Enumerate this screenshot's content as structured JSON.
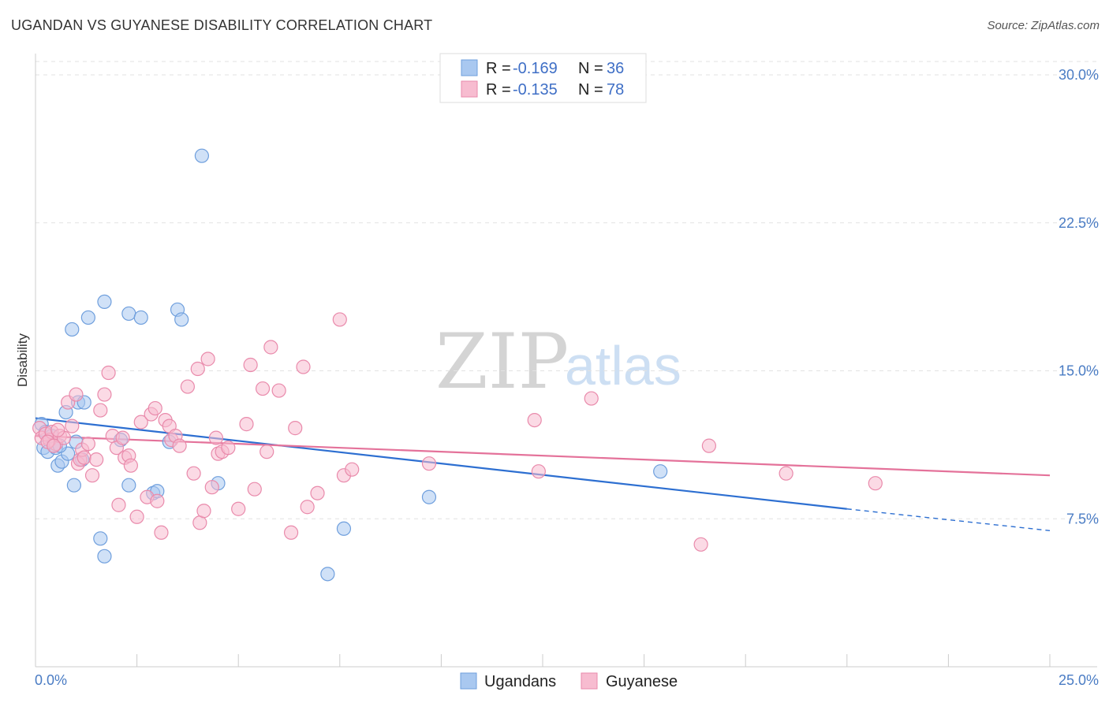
{
  "header": {
    "title": "UGANDAN VS GUYANESE DISABILITY CORRELATION CHART",
    "source": "Source: ZipAtlas.com"
  },
  "legend_top": [
    {
      "r_label": "R = ",
      "r_value": "-0.169",
      "n_label": "N = ",
      "n_value": "36",
      "color": "#a9c8f0",
      "stroke": "#6f9fdd"
    },
    {
      "r_label": "R = ",
      "r_value": "-0.135",
      "n_label": "N = ",
      "n_value": "78",
      "color": "#f7bcd0",
      "stroke": "#e98aab"
    }
  ],
  "watermark": {
    "zip": "ZIP",
    "atlas": "atlas"
  },
  "chart_data": {
    "type": "scatter",
    "title": "UGANDAN VS GUYANESE DISABILITY CORRELATION CHART",
    "ylabel": "Disability",
    "xlabel": "",
    "xlim": [
      0,
      25
    ],
    "ylim": [
      0,
      31
    ],
    "x_tick_labels": [
      "0.0%",
      "25.0%"
    ],
    "y_ticks": [
      7.5,
      15.0,
      22.5,
      30.0
    ],
    "y_tick_labels": [
      "7.5%",
      "15.0%",
      "22.5%",
      "30.0%"
    ],
    "grid": true,
    "legend_position": "bottom-center",
    "series": [
      {
        "name": "Ugandans",
        "color": "#a9c8f0",
        "stroke": "#6f9fdd",
        "line_color": "#2d6fd1",
        "trend": {
          "x0": 0,
          "y0": 12.6,
          "x1": 20,
          "y1": 8.0,
          "dash_to_x": 25,
          "dash_to_y": 6.9
        },
        "points": [
          [
            0.15,
            12.3
          ],
          [
            0.2,
            11.1
          ],
          [
            0.25,
            11.9
          ],
          [
            0.3,
            10.9
          ],
          [
            0.5,
            11.1
          ],
          [
            0.55,
            10.2
          ],
          [
            0.65,
            10.4
          ],
          [
            0.75,
            12.9
          ],
          [
            0.8,
            10.8
          ],
          [
            0.9,
            17.1
          ],
          [
            0.95,
            9.2
          ],
          [
            1.05,
            13.4
          ],
          [
            1.15,
            10.5
          ],
          [
            1.2,
            13.4
          ],
          [
            1.3,
            17.7
          ],
          [
            1.6,
            6.5
          ],
          [
            1.7,
            5.6
          ],
          [
            1.7,
            18.5
          ],
          [
            2.1,
            11.5
          ],
          [
            2.3,
            9.2
          ],
          [
            2.3,
            17.9
          ],
          [
            2.6,
            17.7
          ],
          [
            2.9,
            8.8
          ],
          [
            3.0,
            8.9
          ],
          [
            3.3,
            11.4
          ],
          [
            3.5,
            18.1
          ],
          [
            3.6,
            17.6
          ],
          [
            4.1,
            25.9
          ],
          [
            4.5,
            9.3
          ],
          [
            7.2,
            4.7
          ],
          [
            7.6,
            7.0
          ],
          [
            9.7,
            8.6
          ],
          [
            15.4,
            9.9
          ],
          [
            0.6,
            11.2
          ],
          [
            1.0,
            11.4
          ],
          [
            0.4,
            11.7
          ]
        ]
      },
      {
        "name": "Guyanese",
        "color": "#f7bcd0",
        "stroke": "#e98aab",
        "line_color": "#e4729a",
        "trend": {
          "x0": 0,
          "y0": 11.7,
          "x1": 25,
          "y1": 9.7
        },
        "points": [
          [
            0.1,
            12.1
          ],
          [
            0.15,
            11.6
          ],
          [
            0.25,
            11.8
          ],
          [
            0.35,
            11.5
          ],
          [
            0.4,
            11.9
          ],
          [
            0.5,
            11.3
          ],
          [
            0.6,
            11.7
          ],
          [
            0.7,
            11.6
          ],
          [
            0.8,
            13.4
          ],
          [
            0.9,
            12.2
          ],
          [
            1.0,
            13.8
          ],
          [
            1.05,
            10.3
          ],
          [
            1.1,
            10.5
          ],
          [
            1.15,
            11.0
          ],
          [
            1.2,
            10.6
          ],
          [
            1.3,
            11.3
          ],
          [
            1.4,
            9.7
          ],
          [
            1.5,
            10.5
          ],
          [
            1.6,
            13.0
          ],
          [
            1.7,
            13.8
          ],
          [
            1.8,
            14.9
          ],
          [
            1.9,
            11.7
          ],
          [
            2.0,
            11.1
          ],
          [
            2.05,
            8.2
          ],
          [
            2.15,
            11.6
          ],
          [
            2.2,
            10.6
          ],
          [
            2.3,
            10.7
          ],
          [
            2.35,
            10.2
          ],
          [
            2.5,
            7.6
          ],
          [
            2.6,
            12.4
          ],
          [
            2.75,
            8.6
          ],
          [
            2.85,
            12.8
          ],
          [
            2.95,
            13.1
          ],
          [
            3.0,
            8.4
          ],
          [
            3.1,
            6.8
          ],
          [
            3.2,
            12.5
          ],
          [
            3.3,
            12.2
          ],
          [
            3.35,
            11.5
          ],
          [
            3.45,
            11.7
          ],
          [
            3.55,
            11.2
          ],
          [
            3.75,
            14.2
          ],
          [
            3.9,
            9.8
          ],
          [
            4.0,
            15.1
          ],
          [
            4.05,
            7.3
          ],
          [
            4.15,
            7.9
          ],
          [
            4.25,
            15.6
          ],
          [
            4.35,
            9.1
          ],
          [
            4.45,
            11.6
          ],
          [
            4.5,
            10.8
          ],
          [
            4.6,
            10.9
          ],
          [
            4.75,
            11.1
          ],
          [
            5.0,
            8.0
          ],
          [
            5.2,
            12.3
          ],
          [
            5.3,
            15.3
          ],
          [
            5.4,
            9.0
          ],
          [
            5.6,
            14.1
          ],
          [
            5.7,
            10.9
          ],
          [
            5.8,
            16.2
          ],
          [
            6.0,
            14.0
          ],
          [
            6.3,
            6.8
          ],
          [
            6.4,
            12.1
          ],
          [
            6.6,
            15.2
          ],
          [
            6.7,
            8.1
          ],
          [
            6.95,
            8.8
          ],
          [
            7.5,
            17.6
          ],
          [
            7.6,
            9.7
          ],
          [
            7.8,
            10.0
          ],
          [
            9.7,
            10.3
          ],
          [
            12.3,
            12.5
          ],
          [
            12.4,
            9.9
          ],
          [
            13.7,
            13.6
          ],
          [
            16.4,
            6.2
          ],
          [
            16.6,
            11.2
          ],
          [
            18.5,
            9.8
          ],
          [
            20.7,
            9.3
          ],
          [
            0.3,
            11.4
          ],
          [
            0.45,
            11.2
          ],
          [
            0.55,
            12.0
          ]
        ]
      }
    ]
  },
  "legend_bottom": [
    {
      "label": "Ugandans"
    },
    {
      "label": "Guyanese"
    }
  ]
}
